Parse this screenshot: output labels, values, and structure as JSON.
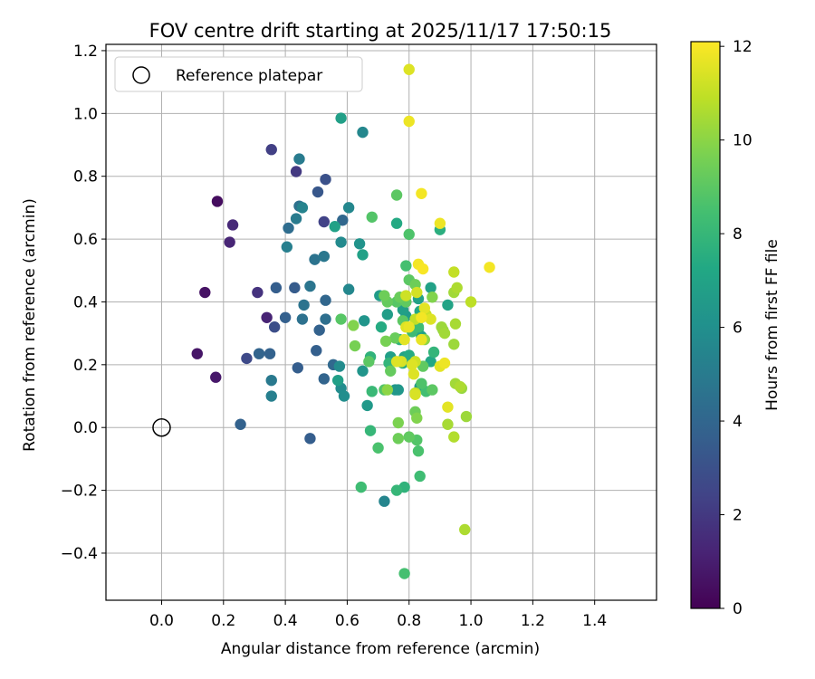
{
  "chart_data": {
    "type": "scatter",
    "title": "FOV centre drift starting at 2025/11/17 17:50:15",
    "xlabel": "Angular distance from reference (arcmin)",
    "ylabel": "Rotation from reference (arcmin)",
    "xlim": [
      -0.18,
      1.6
    ],
    "ylim": [
      -0.55,
      1.22
    ],
    "xticks": [
      0.0,
      0.2,
      0.4,
      0.6,
      0.8,
      1.0,
      1.2,
      1.4
    ],
    "xtick_labels": [
      "0.0",
      "0.2",
      "0.4",
      "0.6",
      "0.8",
      "1.0",
      "1.2",
      "1.4"
    ],
    "yticks": [
      -0.4,
      -0.2,
      0.0,
      0.2,
      0.4,
      0.6,
      0.8,
      1.0,
      1.2
    ],
    "ytick_labels": [
      "−0.4",
      "−0.2",
      "0.0",
      "0.2",
      "0.4",
      "0.6",
      "0.8",
      "1.0",
      "1.2"
    ],
    "grid": true,
    "colormap": "viridis",
    "colorbar": {
      "label": "Hours from first FF file",
      "range": [
        0,
        12.1
      ],
      "ticks": [
        0,
        2,
        4,
        6,
        8,
        10,
        12
      ],
      "tick_labels": [
        "0",
        "2",
        "4",
        "6",
        "8",
        "10",
        "12"
      ]
    },
    "legend": {
      "location": "top-left",
      "label": "Reference platepar"
    },
    "reference_point": {
      "x": 0.0,
      "y": 0.0
    },
    "points": [
      {
        "x": 0.18,
        "y": 0.72,
        "t": 0.4
      },
      {
        "x": 0.14,
        "y": 0.43,
        "t": 0.6
      },
      {
        "x": 0.115,
        "y": 0.235,
        "t": 0.7
      },
      {
        "x": 0.175,
        "y": 0.16,
        "t": 0.8
      },
      {
        "x": 0.23,
        "y": 0.645,
        "t": 1.4
      },
      {
        "x": 0.22,
        "y": 0.59,
        "t": 1.3
      },
      {
        "x": 0.34,
        "y": 0.35,
        "t": 1.2
      },
      {
        "x": 0.31,
        "y": 0.43,
        "t": 1.8
      },
      {
        "x": 0.355,
        "y": 0.885,
        "t": 2.3
      },
      {
        "x": 0.435,
        "y": 0.815,
        "t": 2.0
      },
      {
        "x": 0.275,
        "y": 0.22,
        "t": 2.7
      },
      {
        "x": 0.365,
        "y": 0.32,
        "t": 2.9
      },
      {
        "x": 0.525,
        "y": 0.655,
        "t": 2.4
      },
      {
        "x": 0.53,
        "y": 0.79,
        "t": 3.0
      },
      {
        "x": 0.505,
        "y": 0.75,
        "t": 3.3
      },
      {
        "x": 0.43,
        "y": 0.445,
        "t": 3.5
      },
      {
        "x": 0.37,
        "y": 0.445,
        "t": 3.6
      },
      {
        "x": 0.4,
        "y": 0.35,
        "t": 3.7
      },
      {
        "x": 0.315,
        "y": 0.235,
        "t": 3.9
      },
      {
        "x": 0.35,
        "y": 0.235,
        "t": 3.8
      },
      {
        "x": 0.255,
        "y": 0.01,
        "t": 3.8
      },
      {
        "x": 0.48,
        "y": -0.035,
        "t": 3.6
      },
      {
        "x": 0.44,
        "y": 0.19,
        "t": 3.6
      },
      {
        "x": 0.5,
        "y": 0.245,
        "t": 3.7
      },
      {
        "x": 0.525,
        "y": 0.155,
        "t": 3.9
      },
      {
        "x": 0.51,
        "y": 0.31,
        "t": 3.8
      },
      {
        "x": 0.53,
        "y": 0.405,
        "t": 4.0
      },
      {
        "x": 0.555,
        "y": 0.2,
        "t": 4.1
      },
      {
        "x": 0.585,
        "y": 0.66,
        "t": 4.0
      },
      {
        "x": 0.41,
        "y": 0.635,
        "t": 4.3
      },
      {
        "x": 0.445,
        "y": 0.705,
        "t": 4.5
      },
      {
        "x": 0.495,
        "y": 0.535,
        "t": 4.6
      },
      {
        "x": 0.525,
        "y": 0.545,
        "t": 4.8
      },
      {
        "x": 0.53,
        "y": 0.345,
        "t": 4.4
      },
      {
        "x": 0.46,
        "y": 0.39,
        "t": 4.6
      },
      {
        "x": 0.455,
        "y": 0.345,
        "t": 4.5
      },
      {
        "x": 0.48,
        "y": 0.45,
        "t": 4.7
      },
      {
        "x": 0.355,
        "y": 0.15,
        "t": 4.9
      },
      {
        "x": 0.355,
        "y": 0.1,
        "t": 5.2
      },
      {
        "x": 0.445,
        "y": 0.855,
        "t": 5.0
      },
      {
        "x": 0.435,
        "y": 0.665,
        "t": 5.0
      },
      {
        "x": 0.405,
        "y": 0.575,
        "t": 5.2
      },
      {
        "x": 0.455,
        "y": 0.7,
        "t": 5.4
      },
      {
        "x": 0.65,
        "y": 0.94,
        "t": 5.6
      },
      {
        "x": 0.605,
        "y": 0.7,
        "t": 5.6
      },
      {
        "x": 0.58,
        "y": 0.59,
        "t": 5.7
      },
      {
        "x": 0.605,
        "y": 0.44,
        "t": 5.6
      },
      {
        "x": 0.575,
        "y": 0.195,
        "t": 5.8
      },
      {
        "x": 0.58,
        "y": 0.125,
        "t": 5.8
      },
      {
        "x": 0.59,
        "y": 0.1,
        "t": 5.9
      },
      {
        "x": 0.72,
        "y": -0.235,
        "t": 5.5
      },
      {
        "x": 0.64,
        "y": 0.585,
        "t": 6.2
      },
      {
        "x": 0.655,
        "y": 0.34,
        "t": 6.3
      },
      {
        "x": 0.65,
        "y": 0.18,
        "t": 6.3
      },
      {
        "x": 0.665,
        "y": 0.07,
        "t": 6.5
      },
      {
        "x": 0.58,
        "y": 0.985,
        "t": 6.8
      },
      {
        "x": 0.56,
        "y": 0.64,
        "t": 6.9
      },
      {
        "x": 0.65,
        "y": 0.55,
        "t": 6.9
      },
      {
        "x": 0.57,
        "y": 0.15,
        "t": 6.8
      },
      {
        "x": 0.705,
        "y": 0.42,
        "t": 6.6
      },
      {
        "x": 0.73,
        "y": 0.36,
        "t": 6.7
      },
      {
        "x": 0.755,
        "y": 0.12,
        "t": 6.4
      },
      {
        "x": 0.765,
        "y": 0.12,
        "t": 6.4
      },
      {
        "x": 0.835,
        "y": 0.13,
        "t": 6.3
      },
      {
        "x": 0.9,
        "y": 0.63,
        "t": 7.6
      },
      {
        "x": 0.76,
        "y": 0.65,
        "t": 7.3
      },
      {
        "x": 0.87,
        "y": 0.445,
        "t": 6.9
      },
      {
        "x": 0.83,
        "y": 0.41,
        "t": 6.9
      },
      {
        "x": 0.79,
        "y": 0.355,
        "t": 6.6
      },
      {
        "x": 0.78,
        "y": 0.375,
        "t": 6.8
      },
      {
        "x": 0.835,
        "y": 0.37,
        "t": 7.2
      },
      {
        "x": 0.84,
        "y": 0.35,
        "t": 6.9
      },
      {
        "x": 0.925,
        "y": 0.39,
        "t": 7.0
      },
      {
        "x": 0.83,
        "y": 0.315,
        "t": 7.1
      },
      {
        "x": 0.785,
        "y": 0.225,
        "t": 7.0
      },
      {
        "x": 0.74,
        "y": 0.225,
        "t": 6.8
      },
      {
        "x": 0.78,
        "y": 0.205,
        "t": 7.5
      },
      {
        "x": 0.8,
        "y": 0.23,
        "t": 7.4
      },
      {
        "x": 0.84,
        "y": 0.29,
        "t": 6.9
      },
      {
        "x": 0.77,
        "y": 0.28,
        "t": 7.8
      },
      {
        "x": 0.87,
        "y": 0.21,
        "t": 7.2
      },
      {
        "x": 0.88,
        "y": 0.24,
        "t": 7.9
      },
      {
        "x": 0.735,
        "y": 0.205,
        "t": 7.9
      },
      {
        "x": 0.71,
        "y": 0.32,
        "t": 7.4
      },
      {
        "x": 0.675,
        "y": 0.225,
        "t": 7.8
      },
      {
        "x": 0.68,
        "y": 0.115,
        "t": 8.1
      },
      {
        "x": 0.675,
        "y": -0.01,
        "t": 8.0
      },
      {
        "x": 0.645,
        "y": -0.19,
        "t": 8.3
      },
      {
        "x": 0.76,
        "y": -0.2,
        "t": 8.0
      },
      {
        "x": 0.785,
        "y": -0.19,
        "t": 7.8
      },
      {
        "x": 0.7,
        "y": -0.065,
        "t": 8.6
      },
      {
        "x": 0.72,
        "y": 0.12,
        "t": 8.8
      },
      {
        "x": 0.67,
        "y": 0.21,
        "t": 9.0
      },
      {
        "x": 0.68,
        "y": 0.67,
        "t": 8.8
      },
      {
        "x": 0.76,
        "y": 0.74,
        "t": 9.0
      },
      {
        "x": 0.79,
        "y": 0.515,
        "t": 8.5
      },
      {
        "x": 0.8,
        "y": 0.615,
        "t": 8.7
      },
      {
        "x": 0.8,
        "y": 0.47,
        "t": 9.0
      },
      {
        "x": 0.82,
        "y": 0.455,
        "t": 9.4
      },
      {
        "x": 0.77,
        "y": 0.415,
        "t": 9.3
      },
      {
        "x": 0.79,
        "y": 0.4,
        "t": 9.1
      },
      {
        "x": 0.72,
        "y": 0.42,
        "t": 9.4
      },
      {
        "x": 0.73,
        "y": 0.4,
        "t": 9.2
      },
      {
        "x": 0.755,
        "y": 0.285,
        "t": 9.3
      },
      {
        "x": 0.725,
        "y": 0.275,
        "t": 9.6
      },
      {
        "x": 0.76,
        "y": 0.4,
        "t": 8.9
      },
      {
        "x": 0.78,
        "y": 0.34,
        "t": 9.0
      },
      {
        "x": 0.83,
        "y": 0.32,
        "t": 8.3
      },
      {
        "x": 0.81,
        "y": 0.305,
        "t": 8.2
      },
      {
        "x": 0.845,
        "y": 0.195,
        "t": 9.1
      },
      {
        "x": 0.84,
        "y": 0.14,
        "t": 8.7
      },
      {
        "x": 0.875,
        "y": 0.12,
        "t": 9.0
      },
      {
        "x": 0.855,
        "y": 0.115,
        "t": 8.4
      },
      {
        "x": 0.82,
        "y": 0.05,
        "t": 9.4
      },
      {
        "x": 0.825,
        "y": 0.03,
        "t": 9.8
      },
      {
        "x": 0.8,
        "y": -0.03,
        "t": 9.1
      },
      {
        "x": 0.765,
        "y": 0.015,
        "t": 9.7
      },
      {
        "x": 0.765,
        "y": -0.035,
        "t": 9.4
      },
      {
        "x": 0.825,
        "y": -0.04,
        "t": 8.8
      },
      {
        "x": 0.83,
        "y": -0.075,
        "t": 8.6
      },
      {
        "x": 0.835,
        "y": -0.155,
        "t": 8.3
      },
      {
        "x": 0.785,
        "y": -0.465,
        "t": 8.5
      },
      {
        "x": 0.625,
        "y": 0.26,
        "t": 9.6
      },
      {
        "x": 0.62,
        "y": 0.325,
        "t": 9.8
      },
      {
        "x": 0.58,
        "y": 0.345,
        "t": 8.9
      },
      {
        "x": 0.74,
        "y": 0.18,
        "t": 9.2
      },
      {
        "x": 0.73,
        "y": 0.12,
        "t": 10.0
      },
      {
        "x": 0.875,
        "y": 0.415,
        "t": 9.8
      },
      {
        "x": 0.85,
        "y": 0.28,
        "t": 10.0
      },
      {
        "x": 0.905,
        "y": 0.32,
        "t": 10.3
      },
      {
        "x": 0.915,
        "y": 0.3,
        "t": 10.4
      },
      {
        "x": 0.91,
        "y": 0.31,
        "t": 10.1
      },
      {
        "x": 0.945,
        "y": 0.43,
        "t": 10.4
      },
      {
        "x": 0.955,
        "y": 0.445,
        "t": 10.6
      },
      {
        "x": 0.95,
        "y": 0.33,
        "t": 10.5
      },
      {
        "x": 0.945,
        "y": 0.265,
        "t": 10.3
      },
      {
        "x": 0.95,
        "y": 0.14,
        "t": 10.4
      },
      {
        "x": 0.965,
        "y": 0.13,
        "t": 10.6
      },
      {
        "x": 0.97,
        "y": 0.125,
        "t": 10.2
      },
      {
        "x": 0.985,
        "y": 0.035,
        "t": 10.3
      },
      {
        "x": 0.925,
        "y": 0.01,
        "t": 10.5
      },
      {
        "x": 0.945,
        "y": -0.03,
        "t": 10.7
      },
      {
        "x": 0.98,
        "y": -0.325,
        "t": 10.6
      },
      {
        "x": 1.0,
        "y": 0.4,
        "t": 10.9
      },
      {
        "x": 0.945,
        "y": 0.495,
        "t": 11.0
      },
      {
        "x": 0.855,
        "y": 0.36,
        "t": 11.1
      },
      {
        "x": 0.82,
        "y": 0.345,
        "t": 11.0
      },
      {
        "x": 0.825,
        "y": 0.43,
        "t": 11.3
      },
      {
        "x": 0.82,
        "y": 0.21,
        "t": 11.2
      },
      {
        "x": 0.81,
        "y": 0.2,
        "t": 11.5
      },
      {
        "x": 0.815,
        "y": 0.17,
        "t": 11.5
      },
      {
        "x": 0.82,
        "y": 0.11,
        "t": 11.0
      },
      {
        "x": 0.82,
        "y": 0.105,
        "t": 11.4
      },
      {
        "x": 0.775,
        "y": 0.21,
        "t": 11.4
      },
      {
        "x": 0.76,
        "y": 0.21,
        "t": 11.5
      },
      {
        "x": 0.785,
        "y": 0.28,
        "t": 11.6
      },
      {
        "x": 0.79,
        "y": 0.32,
        "t": 11.5
      },
      {
        "x": 0.8,
        "y": 0.32,
        "t": 11.7
      },
      {
        "x": 0.84,
        "y": 0.28,
        "t": 11.7
      },
      {
        "x": 0.85,
        "y": 0.38,
        "t": 11.6
      },
      {
        "x": 0.87,
        "y": 0.345,
        "t": 11.5
      },
      {
        "x": 0.84,
        "y": 0.35,
        "t": 11.9
      },
      {
        "x": 0.83,
        "y": 0.52,
        "t": 11.9
      },
      {
        "x": 0.845,
        "y": 0.505,
        "t": 12.0
      },
      {
        "x": 0.84,
        "y": 0.745,
        "t": 11.9
      },
      {
        "x": 0.9,
        "y": 0.65,
        "t": 11.8
      },
      {
        "x": 0.9,
        "y": 0.195,
        "t": 11.6
      },
      {
        "x": 0.915,
        "y": 0.205,
        "t": 11.8
      },
      {
        "x": 0.925,
        "y": 0.065,
        "t": 11.6
      },
      {
        "x": 1.06,
        "y": 0.51,
        "t": 11.9
      },
      {
        "x": 0.8,
        "y": 1.14,
        "t": 11.5
      },
      {
        "x": 0.8,
        "y": 0.975,
        "t": 11.8
      },
      {
        "x": 0.79,
        "y": 0.42,
        "t": 11.2
      }
    ]
  }
}
